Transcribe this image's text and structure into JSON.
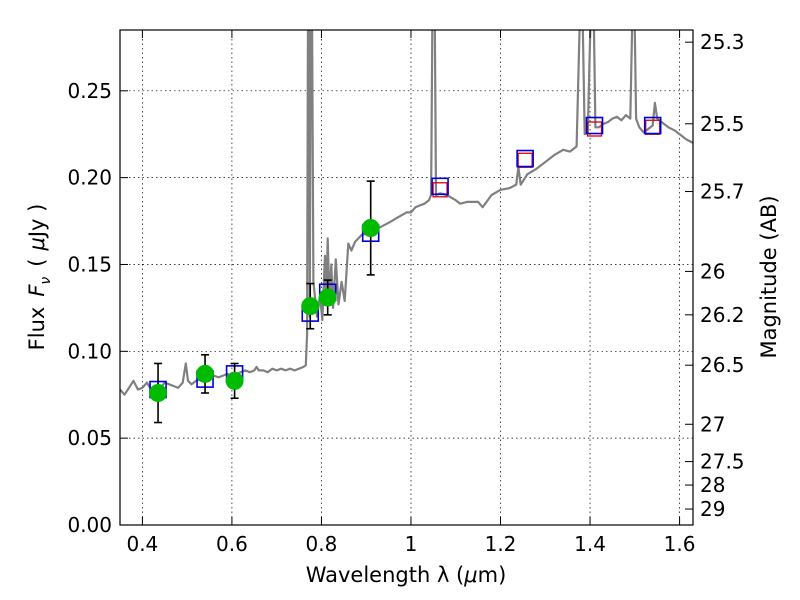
{
  "chart_data": {
    "type": "scatter",
    "xlabel_prefix": "Wavelength  λ (",
    "xlabel_unit": "μ",
    "xlabel_suffix": "m)",
    "ylabel_prefix": "Flux",
    "ylabel_symbol": "F",
    "ylabel_subscript": "ν",
    "ylabel_unit_open": "(",
    "ylabel_unit_mu": "μ",
    "ylabel_unit_rest": "Jy )",
    "y2label": "Magnitude (AB)",
    "xlim": [
      0.35,
      1.63
    ],
    "ylim": [
      0.0,
      0.285
    ],
    "grid": true,
    "x_ticks": [
      0.4,
      0.6,
      0.8,
      1.0,
      1.2,
      1.4,
      1.6
    ],
    "x_tick_labels": [
      "0.4",
      "0.6",
      "0.8",
      "1",
      "1.2",
      "1.4",
      "1.6"
    ],
    "y_ticks": [
      0.0,
      0.05,
      0.1,
      0.15,
      0.2,
      0.25
    ],
    "y_tick_labels": [
      "0.00",
      "0.05",
      "0.10",
      "0.15",
      "0.20",
      "0.25"
    ],
    "mag_ticks": [
      {
        "label": "25.3",
        "flux": 0.278
      },
      {
        "label": "25.5",
        "flux": 0.231
      },
      {
        "label": "25.7",
        "flux": 0.192
      },
      {
        "label": "26",
        "flux": 0.146
      },
      {
        "label": "26.2",
        "flux": 0.121
      },
      {
        "label": "26.5",
        "flux": 0.092
      },
      {
        "label": "27",
        "flux": 0.058
      },
      {
        "label": "27.5",
        "flux": 0.0365
      },
      {
        "label": "28",
        "flux": 0.023
      },
      {
        "label": "29",
        "flux": 0.0092
      }
    ],
    "colors": {
      "model": "#808080",
      "observed": "#00bb00",
      "model_band": "#0000dd",
      "model_band_alt": "#dd0000",
      "errorbar": "#000000"
    },
    "observed": [
      {
        "x": 0.435,
        "y": 0.076,
        "err": 0.017
      },
      {
        "x": 0.54,
        "y": 0.087,
        "err": 0.011
      },
      {
        "x": 0.606,
        "y": 0.083,
        "err": 0.01
      },
      {
        "x": 0.775,
        "y": 0.126,
        "err": 0.013
      },
      {
        "x": 0.814,
        "y": 0.131,
        "err": 0.01
      },
      {
        "x": 0.91,
        "y": 0.171,
        "err": 0.027
      }
    ],
    "model_photometry_blue": [
      {
        "x": 0.435,
        "y": 0.078
      },
      {
        "x": 0.54,
        "y": 0.084
      },
      {
        "x": 0.606,
        "y": 0.087
      },
      {
        "x": 0.775,
        "y": 0.122
      },
      {
        "x": 0.814,
        "y": 0.134
      },
      {
        "x": 0.91,
        "y": 0.168
      },
      {
        "x": 1.065,
        "y": 0.195
      },
      {
        "x": 1.255,
        "y": 0.211
      },
      {
        "x": 1.41,
        "y": 0.23
      },
      {
        "x": 1.54,
        "y": 0.23
      }
    ],
    "model_photometry_red": [
      {
        "x": 1.065,
        "y": 0.193
      },
      {
        "x": 1.255,
        "y": 0.21
      },
      {
        "x": 1.41,
        "y": 0.228
      },
      {
        "x": 1.54,
        "y": 0.229
      }
    ],
    "model_spectrum": [
      [
        0.35,
        0.078
      ],
      [
        0.36,
        0.075
      ],
      [
        0.37,
        0.079
      ],
      [
        0.38,
        0.083
      ],
      [
        0.39,
        0.078
      ],
      [
        0.4,
        0.079
      ],
      [
        0.41,
        0.082
      ],
      [
        0.42,
        0.078
      ],
      [
        0.43,
        0.077
      ],
      [
        0.44,
        0.079
      ],
      [
        0.45,
        0.082
      ],
      [
        0.46,
        0.081
      ],
      [
        0.47,
        0.08
      ],
      [
        0.48,
        0.079
      ],
      [
        0.49,
        0.082
      ],
      [
        0.497,
        0.093
      ],
      [
        0.502,
        0.083
      ],
      [
        0.51,
        0.081
      ],
      [
        0.52,
        0.083
      ],
      [
        0.53,
        0.084
      ],
      [
        0.54,
        0.085
      ],
      [
        0.55,
        0.084
      ],
      [
        0.56,
        0.086
      ],
      [
        0.57,
        0.085
      ],
      [
        0.58,
        0.086
      ],
      [
        0.59,
        0.087
      ],
      [
        0.6,
        0.086
      ],
      [
        0.61,
        0.087
      ],
      [
        0.62,
        0.088
      ],
      [
        0.63,
        0.089
      ],
      [
        0.64,
        0.088
      ],
      [
        0.65,
        0.089
      ],
      [
        0.655,
        0.091
      ],
      [
        0.66,
        0.089
      ],
      [
        0.67,
        0.089
      ],
      [
        0.68,
        0.088
      ],
      [
        0.69,
        0.09
      ],
      [
        0.7,
        0.089
      ],
      [
        0.71,
        0.09
      ],
      [
        0.72,
        0.089
      ],
      [
        0.73,
        0.09
      ],
      [
        0.74,
        0.089
      ],
      [
        0.75,
        0.09
      ],
      [
        0.76,
        0.091
      ],
      [
        0.765,
        0.092
      ],
      [
        0.768,
        0.11
      ],
      [
        0.77,
        0.3
      ],
      [
        0.772,
        0.3
      ],
      [
        0.774,
        0.12
      ],
      [
        0.776,
        0.3
      ],
      [
        0.779,
        0.3
      ],
      [
        0.782,
        0.14
      ],
      [
        0.79,
        0.12
      ],
      [
        0.797,
        0.132
      ],
      [
        0.802,
        0.118
      ],
      [
        0.808,
        0.155
      ],
      [
        0.811,
        0.127
      ],
      [
        0.814,
        0.165
      ],
      [
        0.818,
        0.128
      ],
      [
        0.822,
        0.15
      ],
      [
        0.826,
        0.125
      ],
      [
        0.832,
        0.153
      ],
      [
        0.838,
        0.127
      ],
      [
        0.845,
        0.14
      ],
      [
        0.852,
        0.129
      ],
      [
        0.86,
        0.162
      ],
      [
        0.867,
        0.158
      ],
      [
        0.875,
        0.163
      ],
      [
        0.89,
        0.167
      ],
      [
        0.905,
        0.168
      ],
      [
        0.92,
        0.17
      ],
      [
        0.935,
        0.172
      ],
      [
        0.95,
        0.174
      ],
      [
        0.97,
        0.177
      ],
      [
        0.99,
        0.18
      ],
      [
        1.0,
        0.18
      ],
      [
        1.01,
        0.183
      ],
      [
        1.02,
        0.184
      ],
      [
        1.03,
        0.185
      ],
      [
        1.04,
        0.187
      ],
      [
        1.045,
        0.19
      ],
      [
        1.048,
        0.3
      ],
      [
        1.053,
        0.3
      ],
      [
        1.056,
        0.19
      ],
      [
        1.065,
        0.191
      ],
      [
        1.08,
        0.19
      ],
      [
        1.1,
        0.187
      ],
      [
        1.11,
        0.185
      ],
      [
        1.125,
        0.186
      ],
      [
        1.15,
        0.186
      ],
      [
        1.16,
        0.183
      ],
      [
        1.18,
        0.19
      ],
      [
        1.2,
        0.193
      ],
      [
        1.22,
        0.194
      ],
      [
        1.235,
        0.196
      ],
      [
        1.24,
        0.206
      ],
      [
        1.245,
        0.196
      ],
      [
        1.26,
        0.202
      ],
      [
        1.28,
        0.205
      ],
      [
        1.3,
        0.209
      ],
      [
        1.32,
        0.213
      ],
      [
        1.34,
        0.216
      ],
      [
        1.355,
        0.215
      ],
      [
        1.37,
        0.218
      ],
      [
        1.378,
        0.3
      ],
      [
        1.383,
        0.3
      ],
      [
        1.388,
        0.225
      ],
      [
        1.395,
        0.226
      ],
      [
        1.402,
        0.3
      ],
      [
        1.408,
        0.3
      ],
      [
        1.412,
        0.229
      ],
      [
        1.42,
        0.229
      ],
      [
        1.43,
        0.231
      ],
      [
        1.44,
        0.232
      ],
      [
        1.45,
        0.234
      ],
      [
        1.46,
        0.235
      ],
      [
        1.47,
        0.233
      ],
      [
        1.48,
        0.236
      ],
      [
        1.49,
        0.234
      ],
      [
        1.495,
        0.3
      ],
      [
        1.499,
        0.3
      ],
      [
        1.503,
        0.234
      ],
      [
        1.51,
        0.229
      ],
      [
        1.52,
        0.226
      ],
      [
        1.53,
        0.228
      ],
      [
        1.54,
        0.23
      ],
      [
        1.545,
        0.243
      ],
      [
        1.55,
        0.234
      ],
      [
        1.56,
        0.232
      ],
      [
        1.575,
        0.229
      ],
      [
        1.59,
        0.227
      ],
      [
        1.605,
        0.224
      ],
      [
        1.615,
        0.222
      ],
      [
        1.63,
        0.22
      ]
    ]
  }
}
